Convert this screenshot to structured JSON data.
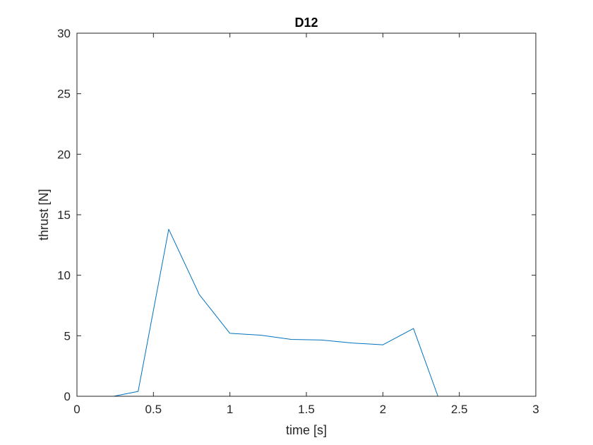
{
  "chart_data": {
    "type": "line",
    "title": "D12",
    "xlabel": "time [s]",
    "ylabel": "thrust [N]",
    "xlim": [
      0,
      3
    ],
    "ylim": [
      0,
      30
    ],
    "xticks": [
      0,
      0.5,
      1,
      1.5,
      2,
      2.5,
      3
    ],
    "xtick_labels": [
      "0",
      "0.5",
      "1",
      "1.5",
      "2",
      "2.5",
      "3"
    ],
    "yticks": [
      0,
      5,
      10,
      15,
      20,
      25,
      30
    ],
    "ytick_labels": [
      "0",
      "5",
      "10",
      "15",
      "20",
      "25",
      "30"
    ],
    "grid": false,
    "series": [
      {
        "color": "#0072bd",
        "x": [
          0.24,
          0.4,
          0.6,
          0.8,
          1.0,
          1.2,
          1.4,
          1.6,
          1.8,
          2.0,
          2.2,
          2.36
        ],
        "y": [
          0,
          0.4,
          13.8,
          8.4,
          5.2,
          5.05,
          4.7,
          4.65,
          4.4,
          4.25,
          5.6,
          0
        ]
      }
    ]
  }
}
